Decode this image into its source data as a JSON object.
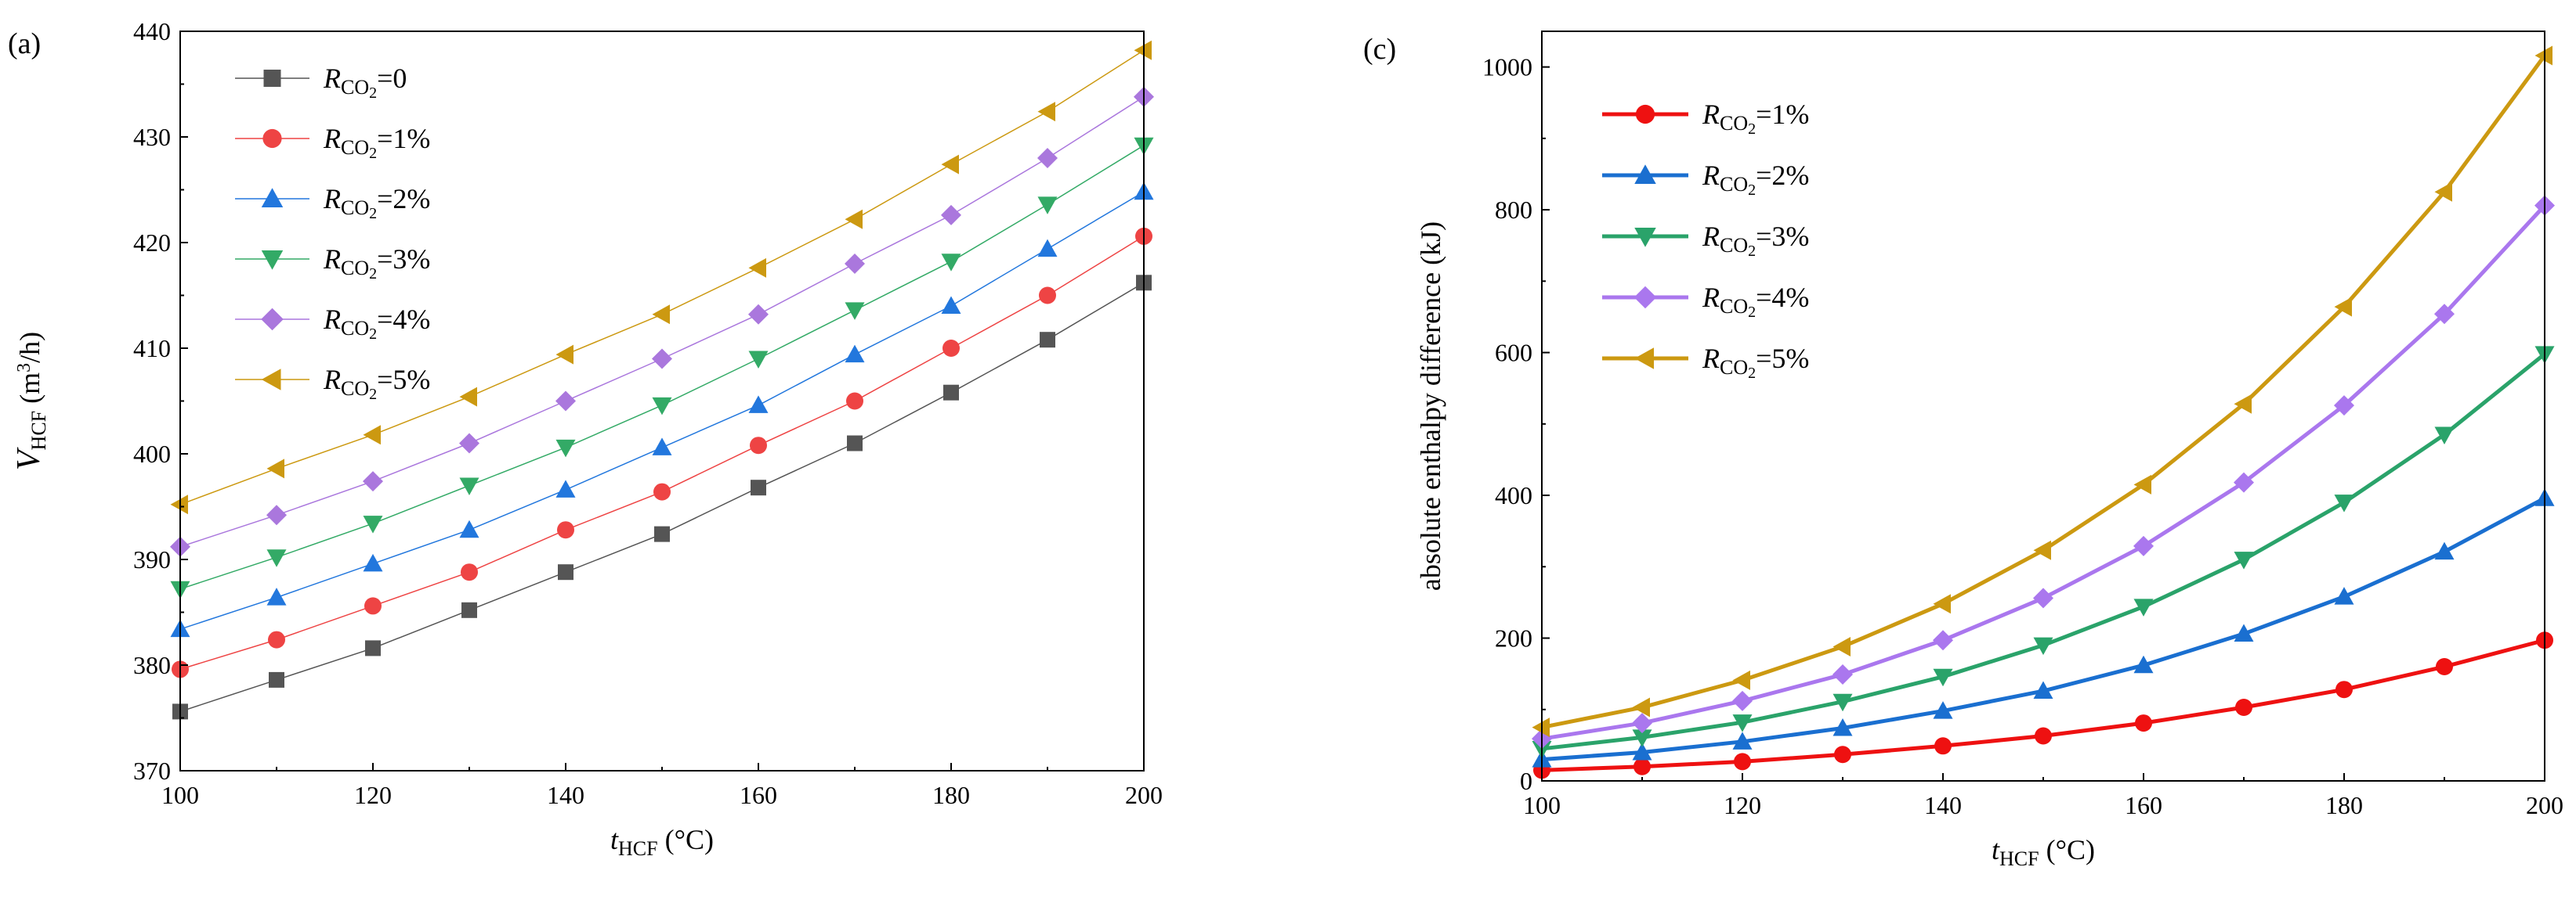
{
  "chart_data": [
    {
      "type": "line",
      "panel_label": "(a)",
      "xlabel": {
        "main": "t",
        "sub": "HCF",
        "unit": " (°C)"
      },
      "ylabel": {
        "main": "V",
        "sub": "HCF",
        "unit_pre": " (m",
        "unit_sup": "3",
        "unit_post": "/h)"
      },
      "xlim": [
        100,
        200
      ],
      "ylim": [
        370,
        440
      ],
      "xticks": [
        100,
        120,
        140,
        160,
        180,
        200
      ],
      "yticks": [
        370,
        380,
        390,
        400,
        410,
        420,
        430,
        440
      ],
      "x": [
        100,
        110,
        120,
        130,
        140,
        150,
        160,
        170,
        180,
        190,
        200
      ],
      "legend_location": "top-left",
      "series": [
        {
          "name": "R_CO2=0",
          "label_main": "R",
          "label_sub": "CO",
          "label_sub2": "2",
          "label_val": "=0",
          "color": "#555555",
          "marker": "square",
          "values": [
            375.6,
            378.6,
            381.6,
            385.2,
            388.8,
            392.4,
            396.8,
            401.0,
            405.8,
            410.8,
            416.2
          ]
        },
        {
          "name": "R_CO2=1%",
          "label_main": "R",
          "label_sub": "CO",
          "label_sub2": "2",
          "label_val": "=1%",
          "color": "#ee4444",
          "marker": "circle",
          "values": [
            379.6,
            382.4,
            385.6,
            388.8,
            392.8,
            396.4,
            400.8,
            405.0,
            410.0,
            415.0,
            420.6
          ]
        },
        {
          "name": "R_CO2=2%",
          "label_main": "R",
          "label_sub": "CO",
          "label_sub2": "2",
          "label_val": "=2%",
          "color": "#2277dd",
          "marker": "triangle-up",
          "values": [
            383.4,
            386.4,
            389.6,
            392.8,
            396.6,
            400.6,
            404.6,
            409.4,
            414.0,
            419.4,
            424.8
          ]
        },
        {
          "name": "R_CO2=3%",
          "label_main": "R",
          "label_sub": "CO",
          "label_sub2": "2",
          "label_val": "=3%",
          "color": "#33aa66",
          "marker": "triangle-down",
          "values": [
            387.2,
            390.2,
            393.4,
            397.0,
            400.6,
            404.6,
            409.0,
            413.6,
            418.2,
            423.6,
            429.2
          ]
        },
        {
          "name": "R_CO2=4%",
          "label_main": "R",
          "label_sub": "CO",
          "label_sub2": "2",
          "label_val": "=4%",
          "color": "#aa77dd",
          "marker": "diamond",
          "values": [
            391.2,
            394.2,
            397.4,
            401.0,
            405.0,
            409.0,
            413.2,
            418.0,
            422.6,
            428.0,
            433.8
          ]
        },
        {
          "name": "R_CO2=5%",
          "label_main": "R",
          "label_sub": "CO",
          "label_sub2": "2",
          "label_val": "=5%",
          "color": "#cc9911",
          "marker": "triangle-left",
          "values": [
            395.2,
            398.6,
            401.8,
            405.4,
            409.4,
            413.2,
            417.6,
            422.2,
            427.4,
            432.4,
            438.2
          ]
        }
      ]
    },
    {
      "type": "line",
      "panel_label": "(c)",
      "xlabel": {
        "main": "t",
        "sub": "HCF",
        "unit": " (°C)"
      },
      "ylabel": {
        "text": "absolute enthalpy difference (kJ)"
      },
      "xlim": [
        100,
        200
      ],
      "ylim": [
        0,
        1050
      ],
      "xticks": [
        100,
        120,
        140,
        160,
        180,
        200
      ],
      "yticks": [
        0,
        200,
        400,
        600,
        800,
        1000
      ],
      "x": [
        100,
        110,
        120,
        130,
        140,
        150,
        160,
        170,
        180,
        190,
        200
      ],
      "legend_location": "top-left",
      "series": [
        {
          "name": "R_CO2=1%",
          "label_main": "R",
          "label_sub": "CO",
          "label_sub2": "2",
          "label_val": "=1%",
          "color": "#ee1111",
          "marker": "circle",
          "values": [
            15,
            20,
            27,
            37,
            49,
            63,
            81,
            103,
            128,
            160,
            197
          ]
        },
        {
          "name": "R_CO2=2%",
          "label_main": "R",
          "label_sub": "CO",
          "label_sub2": "2",
          "label_val": "=2%",
          "color": "#1a6fd0",
          "marker": "triangle-up",
          "values": [
            30,
            40,
            55,
            74,
            98,
            126,
            162,
            206,
            258,
            321,
            396
          ]
        },
        {
          "name": "R_CO2=3%",
          "label_main": "R",
          "label_sub": "CO",
          "label_sub2": "2",
          "label_val": "=3%",
          "color": "#2aa36a",
          "marker": "triangle-down",
          "values": [
            45,
            61,
            82,
            111,
            146,
            190,
            244,
            310,
            390,
            485,
            598
          ]
        },
        {
          "name": "R_CO2=4%",
          "label_main": "R",
          "label_sub": "CO",
          "label_sub2": "2",
          "label_val": "=4%",
          "color": "#aa77ee",
          "marker": "diamond",
          "values": [
            59,
            81,
            112,
            149,
            197,
            256,
            329,
            418,
            526,
            654,
            806
          ]
        },
        {
          "name": "R_CO2=5%",
          "label_main": "R",
          "label_sub": "CO",
          "label_sub2": "2",
          "label_val": "=5%",
          "color": "#cc9911",
          "marker": "triangle-left",
          "values": [
            75,
            103,
            141,
            188,
            248,
            323,
            415,
            528,
            664,
            825,
            1016
          ]
        }
      ]
    }
  ]
}
